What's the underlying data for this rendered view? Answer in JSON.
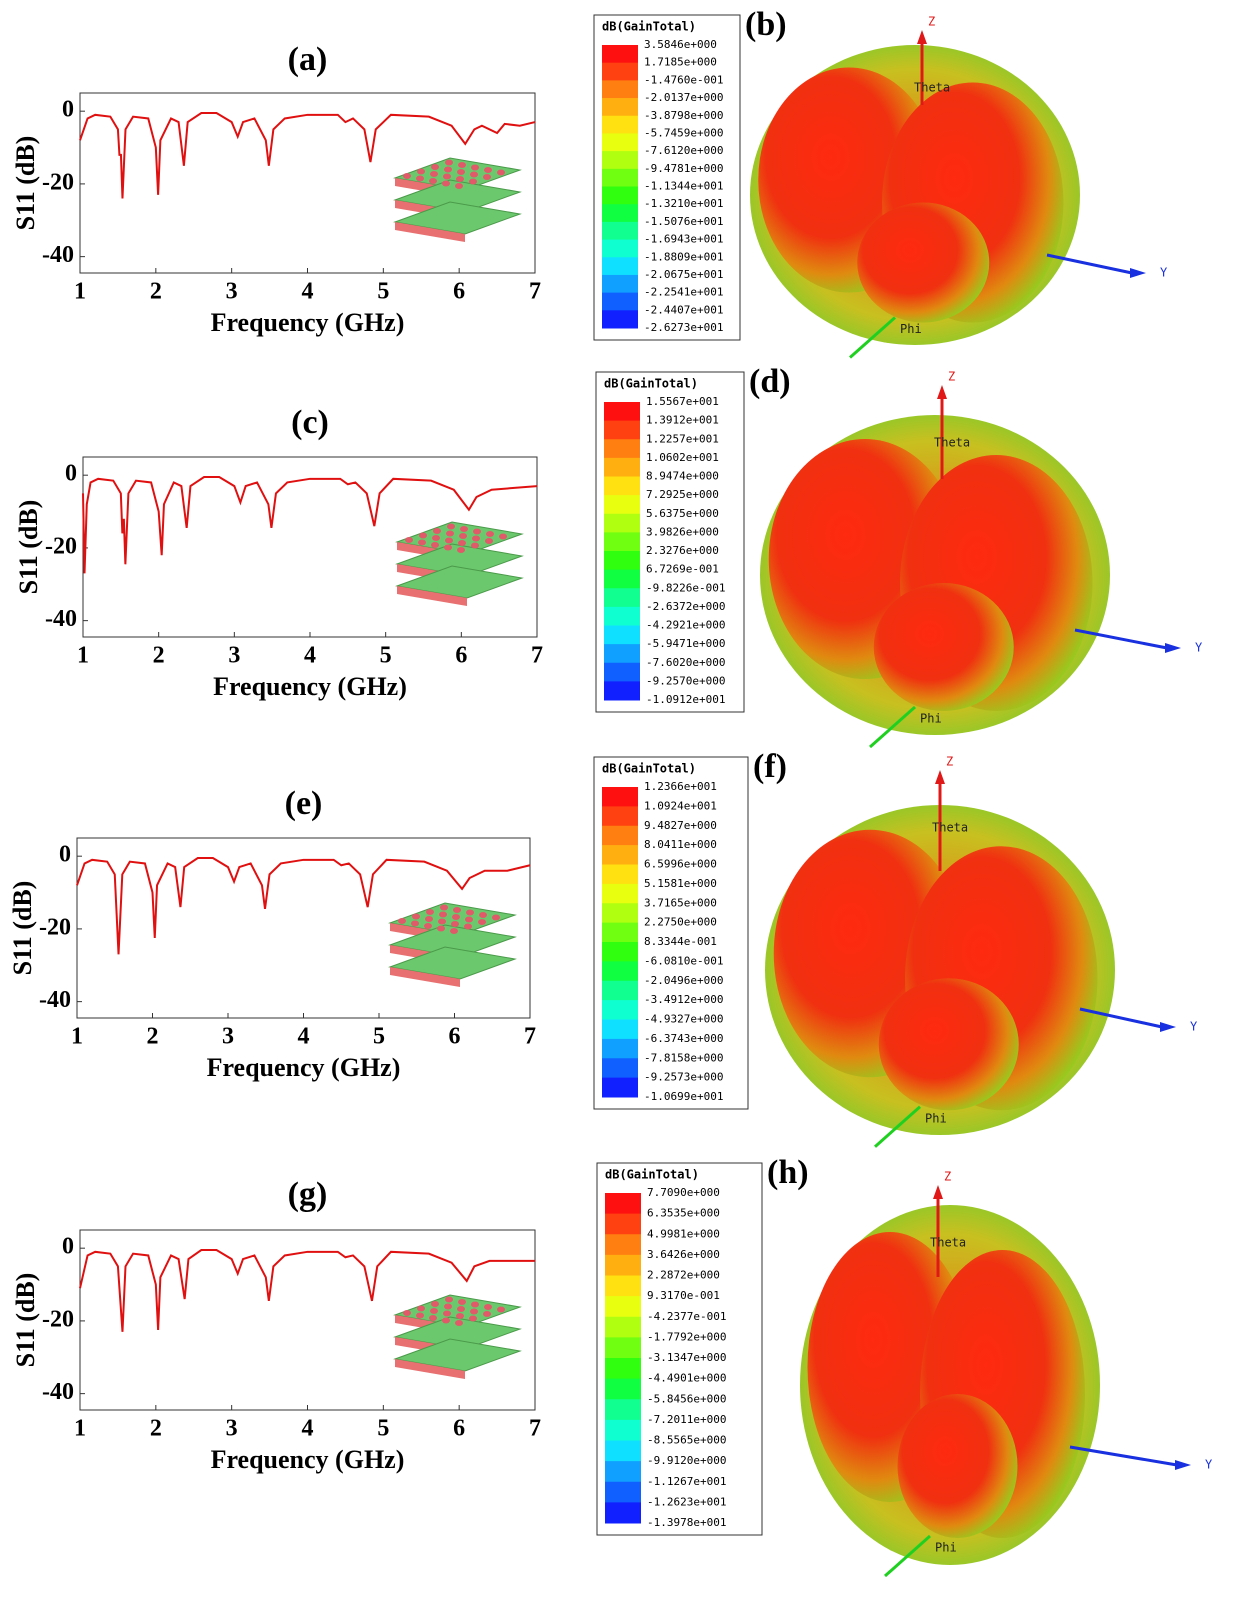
{
  "chart_data": [
    {
      "type": "line",
      "title": "(a)",
      "xlabel": "Frequency (GHz)",
      "ylabel": "S11 (dB)",
      "color": "#e01010",
      "x": [
        1,
        1.1,
        1.2,
        1.4,
        1.5,
        1.52,
        1.54,
        1.56,
        1.6,
        1.7,
        1.9,
        2.0,
        2.03,
        2.06,
        2.2,
        2.3,
        2.37,
        2.42,
        2.6,
        2.8,
        3.0,
        3.08,
        3.15,
        3.3,
        3.45,
        3.49,
        3.55,
        3.7,
        4.0,
        4.4,
        4.5,
        4.6,
        4.75,
        4.83,
        4.9,
        5.1,
        5.6,
        5.9,
        6.08,
        6.2,
        6.3,
        6.5,
        6.6,
        6.8,
        7
      ],
      "values": [
        -8,
        -2,
        -1,
        -1.5,
        -5,
        -12,
        -12,
        -24,
        -5,
        -1.5,
        -2,
        -10,
        -23,
        -8,
        -2,
        -3,
        -15,
        -3,
        -0.5,
        -0.5,
        -3,
        -7,
        -3,
        -2,
        -8,
        -15,
        -5,
        -2,
        -1,
        -1,
        -3,
        -2,
        -5,
        -14,
        -5,
        -1,
        -1.5,
        -4,
        -9,
        -5,
        -4,
        -6,
        -3.5,
        -4,
        -3
      ],
      "xlim": [
        1,
        7
      ],
      "ylim": [
        -44.5,
        5
      ],
      "xticks": [
        1,
        2,
        3,
        4,
        5,
        6,
        7
      ],
      "yticks": [
        0,
        -20,
        -40
      ]
    },
    {
      "type": "colorbar",
      "title": "(b)",
      "label": "dB(GainTotal)",
      "labels": [
        "3.5846e+000",
        "1.7185e+000",
        "-1.4760e-001",
        "-2.0137e+000",
        "-3.8798e+000",
        "-5.7459e+000",
        "-7.6120e+000",
        "-9.4781e+000",
        "-1.1344e+001",
        "-1.3210e+001",
        "-1.5076e+001",
        "-1.6943e+001",
        "-1.8809e+001",
        "-2.0675e+001",
        "-2.2541e+001",
        "-2.4407e+001",
        "-2.6273e+001"
      ],
      "colors": [
        "#ff1010",
        "#ff4010",
        "#ff8010",
        "#ffb010",
        "#ffe010",
        "#e8ff10",
        "#b0ff10",
        "#70ff10",
        "#30ff10",
        "#10ff40",
        "#10ff90",
        "#10ffd0",
        "#10e0ff",
        "#10a0ff",
        "#1060ff",
        "#1020ff"
      ],
      "axes_labels": [
        "Z",
        "Theta",
        "Y",
        "Phi"
      ]
    },
    {
      "type": "line",
      "title": "(c)",
      "xlabel": "Frequency (GHz)",
      "ylabel": "S11 (dB)",
      "color": "#e01010",
      "x": [
        1,
        1.02,
        1.05,
        1.1,
        1.2,
        1.4,
        1.5,
        1.52,
        1.54,
        1.56,
        1.6,
        1.7,
        1.9,
        2.0,
        2.04,
        2.07,
        2.2,
        2.3,
        2.37,
        2.42,
        2.6,
        2.8,
        3.0,
        3.08,
        3.15,
        3.3,
        3.45,
        3.49,
        3.55,
        3.7,
        4.0,
        4.4,
        4.5,
        4.6,
        4.75,
        4.85,
        4.92,
        5.1,
        5.6,
        5.9,
        6.1,
        6.2,
        6.4,
        6.7,
        7
      ],
      "values": [
        -5,
        -27,
        -8,
        -2,
        -1,
        -1.5,
        -5,
        -16,
        -12,
        -24.5,
        -5,
        -1.5,
        -2,
        -10,
        -22,
        -8,
        -2,
        -3,
        -14.5,
        -3,
        -0.5,
        -0.5,
        -3,
        -7.5,
        -3,
        -2,
        -8,
        -14.5,
        -5,
        -2,
        -1,
        -1,
        -2.5,
        -2,
        -5,
        -14,
        -5,
        -1,
        -1.5,
        -4,
        -9.5,
        -6,
        -4,
        -3.5,
        -3
      ],
      "xlim": [
        1,
        7
      ],
      "ylim": [
        -44.5,
        5
      ],
      "xticks": [
        1,
        2,
        3,
        4,
        5,
        6,
        7
      ],
      "yticks": [
        0,
        -20,
        -40
      ]
    },
    {
      "type": "colorbar",
      "title": "(d)",
      "label": "dB(GainTotal)",
      "labels": [
        "1.5567e+001",
        "1.3912e+001",
        "1.2257e+001",
        "1.0602e+001",
        "8.9474e+000",
        "7.2925e+000",
        "5.6375e+000",
        "3.9826e+000",
        "2.3276e+000",
        "6.7269e-001",
        "-9.8226e-001",
        "-2.6372e+000",
        "-4.2921e+000",
        "-5.9471e+000",
        "-7.6020e+000",
        "-9.2570e+000",
        "-1.0912e+001"
      ],
      "colors": [
        "#ff1010",
        "#ff4010",
        "#ff8010",
        "#ffb010",
        "#ffe010",
        "#e8ff10",
        "#b0ff10",
        "#70ff10",
        "#30ff10",
        "#10ff40",
        "#10ff90",
        "#10ffd0",
        "#10e0ff",
        "#10a0ff",
        "#1060ff",
        "#1020ff"
      ],
      "axes_labels": [
        "Z",
        "Theta",
        "Y",
        "Phi"
      ]
    },
    {
      "type": "line",
      "title": "(e)",
      "xlabel": "Frequency (GHz)",
      "ylabel": "S11 (dB)",
      "color": "#e01010",
      "x": [
        1,
        1.1,
        1.2,
        1.4,
        1.5,
        1.55,
        1.6,
        1.7,
        1.9,
        2.0,
        2.03,
        2.06,
        2.2,
        2.3,
        2.37,
        2.42,
        2.6,
        2.8,
        3.0,
        3.08,
        3.15,
        3.3,
        3.45,
        3.49,
        3.55,
        3.7,
        4.0,
        4.4,
        4.5,
        4.6,
        4.75,
        4.85,
        4.92,
        5.1,
        5.6,
        5.9,
        6.1,
        6.2,
        6.4,
        6.7,
        7
      ],
      "values": [
        -8,
        -2,
        -1,
        -1.5,
        -5,
        -27,
        -5,
        -1.5,
        -2,
        -10,
        -22.5,
        -8,
        -2,
        -3,
        -14,
        -3,
        -0.5,
        -0.5,
        -3,
        -7,
        -3,
        -2,
        -8,
        -14.5,
        -5,
        -2,
        -1,
        -1,
        -2.5,
        -2,
        -5,
        -14,
        -5,
        -1,
        -1.5,
        -4,
        -9,
        -6,
        -4,
        -4,
        -2.5
      ],
      "xlim": [
        1,
        7
      ],
      "ylim": [
        -44.5,
        5
      ],
      "xticks": [
        1,
        2,
        3,
        4,
        5,
        6,
        7
      ],
      "yticks": [
        0,
        -20,
        -40
      ]
    },
    {
      "type": "colorbar",
      "title": "(f)",
      "label": "dB(GainTotal)",
      "labels": [
        "1.2366e+001",
        "1.0924e+001",
        "9.4827e+000",
        "8.0411e+000",
        "6.5996e+000",
        "5.1581e+000",
        "3.7165e+000",
        "2.2750e+000",
        "8.3344e-001",
        "-6.0810e-001",
        "-2.0496e+000",
        "-3.4912e+000",
        "-4.9327e+000",
        "-6.3743e+000",
        "-7.8158e+000",
        "-9.2573e+000",
        "-1.0699e+001"
      ],
      "colors": [
        "#ff1010",
        "#ff4010",
        "#ff8010",
        "#ffb010",
        "#ffe010",
        "#e8ff10",
        "#b0ff10",
        "#70ff10",
        "#30ff10",
        "#10ff40",
        "#10ff90",
        "#10ffd0",
        "#10e0ff",
        "#10a0ff",
        "#1060ff",
        "#1020ff"
      ],
      "axes_labels": [
        "Z",
        "Theta",
        "Y",
        "Phi"
      ]
    },
    {
      "type": "line",
      "title": "(g)",
      "xlabel": "Frequency (GHz)",
      "ylabel": "S11 (dB)",
      "color": "#e01010",
      "x": [
        1,
        1.1,
        1.2,
        1.4,
        1.5,
        1.56,
        1.6,
        1.7,
        1.9,
        2.0,
        2.03,
        2.06,
        2.2,
        2.3,
        2.38,
        2.43,
        2.6,
        2.8,
        3.0,
        3.08,
        3.15,
        3.3,
        3.45,
        3.49,
        3.55,
        3.7,
        4.0,
        4.4,
        4.5,
        4.6,
        4.75,
        4.85,
        4.92,
        5.1,
        5.6,
        5.9,
        6.1,
        6.2,
        6.4,
        6.7,
        7
      ],
      "values": [
        -11,
        -2,
        -1,
        -1.5,
        -5,
        -23,
        -5,
        -1.5,
        -2,
        -10,
        -22.5,
        -8,
        -2,
        -3,
        -14,
        -3,
        -0.5,
        -0.5,
        -3,
        -7,
        -3,
        -2,
        -8,
        -14.5,
        -5,
        -2,
        -1,
        -1,
        -2.5,
        -2,
        -5,
        -14.5,
        -5,
        -1,
        -1.5,
        -4,
        -9,
        -5,
        -3.5,
        -3.5,
        -3.5
      ],
      "xlim": [
        1,
        7
      ],
      "ylim": [
        -44.5,
        5
      ],
      "xticks": [
        1,
        2,
        3,
        4,
        5,
        6,
        7
      ],
      "yticks": [
        0,
        -20,
        -40
      ]
    },
    {
      "type": "colorbar",
      "title": "(h)",
      "label": "dB(GainTotal)",
      "labels": [
        "7.7090e+000",
        "6.3535e+000",
        "4.9981e+000",
        "3.6426e+000",
        "2.2872e+000",
        "9.3170e-001",
        "-4.2377e-001",
        "-1.7792e+000",
        "-3.1347e+000",
        "-4.4901e+000",
        "-5.8456e+000",
        "-7.2011e+000",
        "-8.5565e+000",
        "-9.9120e+000",
        "-1.1267e+001",
        "-1.2623e+001",
        "-1.3978e+001"
      ],
      "colors": [
        "#ff1010",
        "#ff4010",
        "#ff8010",
        "#ffb010",
        "#ffe010",
        "#e8ff10",
        "#b0ff10",
        "#70ff10",
        "#30ff10",
        "#10ff40",
        "#10ff90",
        "#10ffd0",
        "#10e0ff",
        "#10a0ff",
        "#1060ff",
        "#1020ff"
      ],
      "axes_labels": [
        "Z",
        "Theta",
        "Y",
        "Phi"
      ]
    }
  ]
}
